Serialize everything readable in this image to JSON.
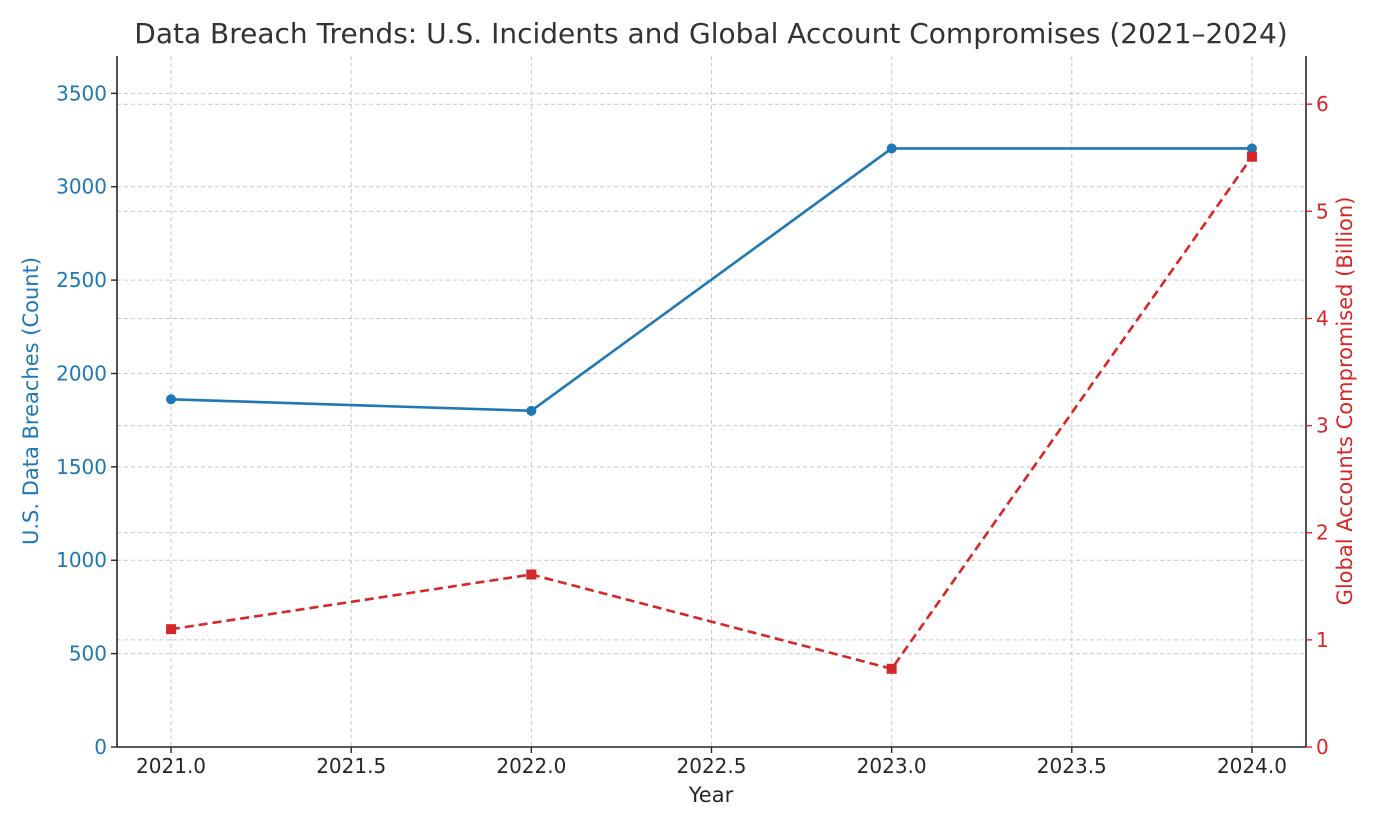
{
  "chart_data": {
    "type": "line",
    "title": "Data Breach Trends: U.S. Incidents and Global Account Compromises (2021–2024)",
    "xlabel": "Year",
    "ylabel_left": "U.S. Data Breaches (Count)",
    "ylabel_right": "Global Accounts Compromised (Billion)",
    "x": [
      2021,
      2022,
      2023,
      2024
    ],
    "x_ticks": [
      2021.0,
      2021.5,
      2022.0,
      2022.5,
      2023.0,
      2023.5,
      2024.0
    ],
    "x_tick_labels": [
      "2021.0",
      "2021.5",
      "2022.0",
      "2022.5",
      "2023.0",
      "2023.5",
      "2024.0"
    ],
    "xlim": [
      2020.85,
      2024.15
    ],
    "ylim_left": [
      0,
      3700
    ],
    "y_ticks_left": [
      0,
      500,
      1000,
      1500,
      2000,
      2500,
      3000,
      3500
    ],
    "ylim_right": [
      0,
      6.45
    ],
    "y_ticks_right": [
      0,
      1,
      2,
      3,
      4,
      5,
      6
    ],
    "grid": true,
    "series": [
      {
        "axis": "left",
        "values": [
          1862,
          1800,
          3205,
          3205
        ],
        "color": "#1f77b4",
        "line_style": "solid",
        "marker": "circle"
      },
      {
        "axis": "right",
        "values": [
          1.1,
          1.61,
          0.73,
          5.51
        ],
        "color": "#d62728",
        "line_style": "dashed",
        "marker": "square"
      }
    ]
  }
}
